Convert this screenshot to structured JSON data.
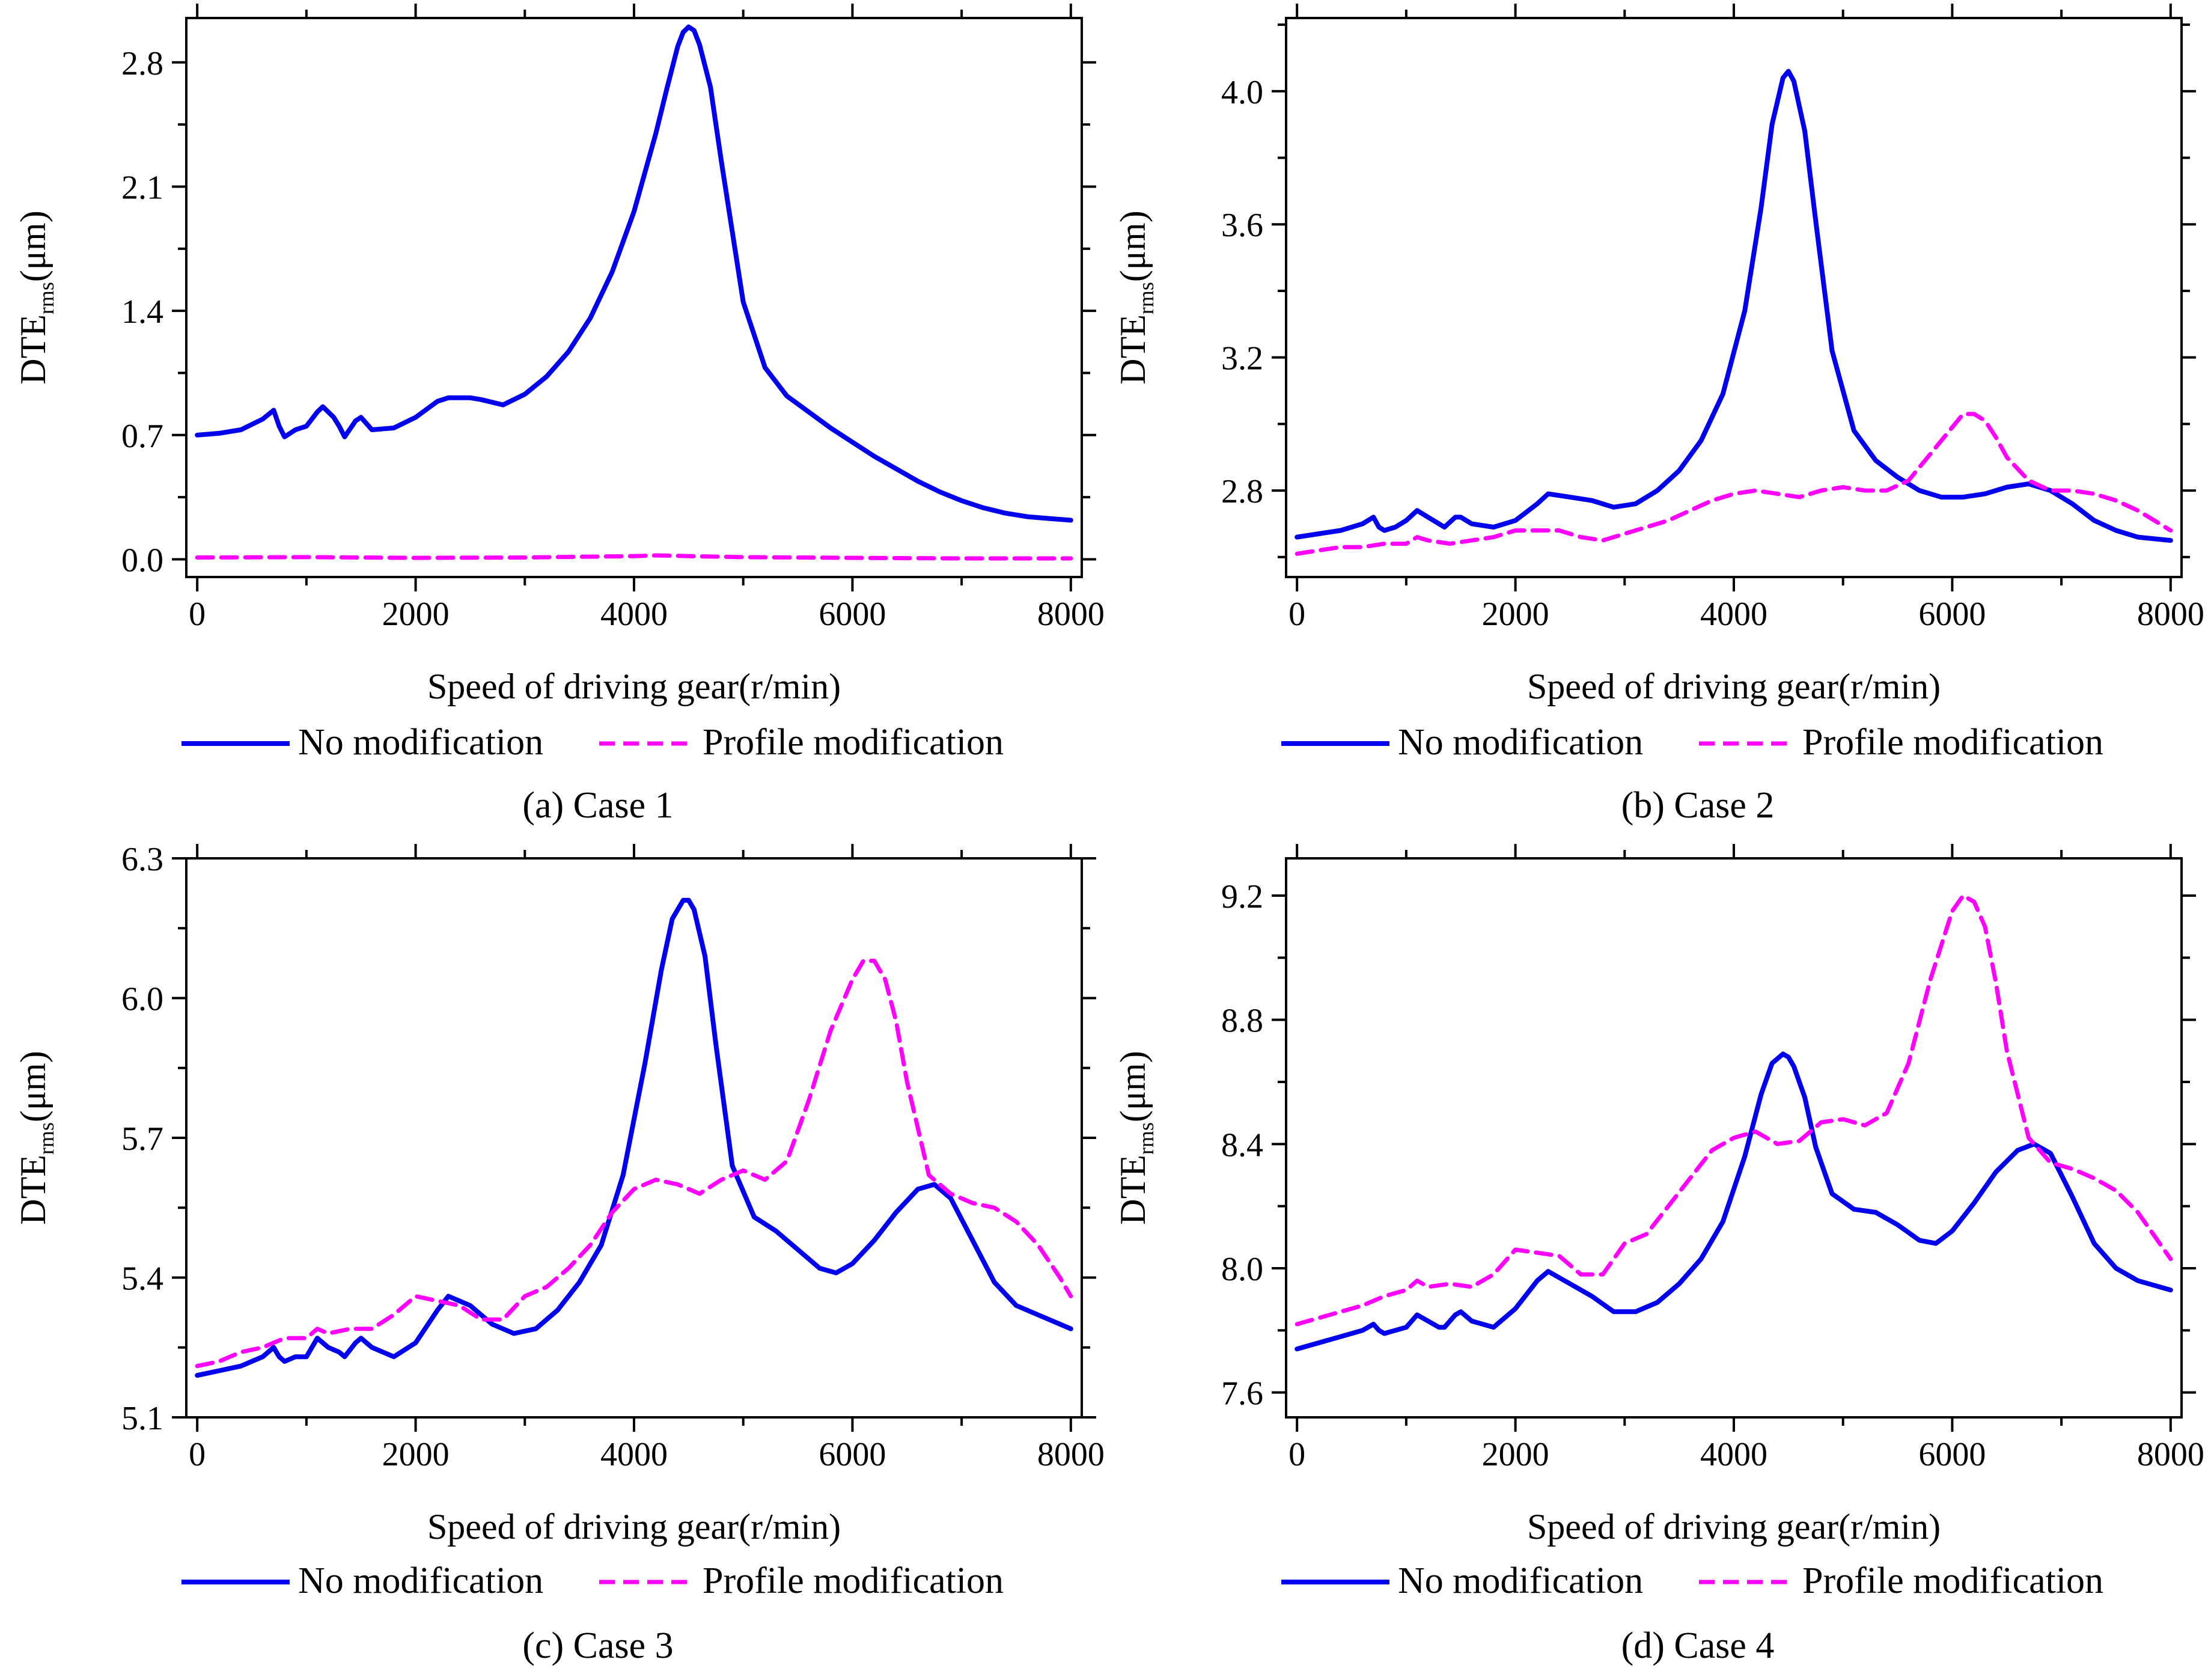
{
  "figure": {
    "panels_note": "four panels arranged 2x2"
  },
  "legend": {
    "no_mod": "No modification",
    "profile_mod": "Profile modification"
  },
  "colors": {
    "no_mod": "#0000ee",
    "profile_mod": "#ff00ff"
  },
  "chart_data": [
    {
      "type": "line",
      "panel": "a",
      "caption": "(a) Case 1",
      "xlabel": "Speed of driving gear(r/min)",
      "ylabel_main": "DTE",
      "ylabel_sub": "rms",
      "ylabel_unit": "(μm)",
      "xlim": [
        -100,
        8100
      ],
      "ylim": [
        -0.1,
        3.05
      ],
      "xticks": [
        0,
        2000,
        4000,
        6000,
        8000
      ],
      "xtick_labels": [
        "0",
        "2000",
        "4000",
        "6000",
        "8000"
      ],
      "yticks": [
        0.0,
        0.7,
        1.4,
        2.1,
        2.8
      ],
      "ytick_labels": [
        "0.0",
        "0.7",
        "1.4",
        "2.1",
        "2.8"
      ],
      "legend_position": "below",
      "series": [
        {
          "name": "No modification",
          "style": "solid",
          "x": [
            0,
            200,
            400,
            600,
            700,
            750,
            800,
            900,
            1000,
            1100,
            1150,
            1250,
            1300,
            1350,
            1450,
            1500,
            1600,
            1800,
            2000,
            2200,
            2300,
            2500,
            2600,
            2800,
            3000,
            3200,
            3400,
            3600,
            3800,
            4000,
            4200,
            4300,
            4400,
            4450,
            4500,
            4550,
            4600,
            4700,
            4800,
            5000,
            5200,
            5400,
            5600,
            5800,
            6000,
            6200,
            6400,
            6600,
            6800,
            7000,
            7200,
            7400,
            7600,
            7800,
            8000
          ],
          "y": [
            0.7,
            0.71,
            0.73,
            0.79,
            0.84,
            0.75,
            0.69,
            0.73,
            0.75,
            0.83,
            0.86,
            0.8,
            0.75,
            0.69,
            0.78,
            0.8,
            0.73,
            0.74,
            0.8,
            0.89,
            0.91,
            0.91,
            0.9,
            0.87,
            0.93,
            1.03,
            1.17,
            1.36,
            1.62,
            1.96,
            2.4,
            2.65,
            2.89,
            2.97,
            3.0,
            2.98,
            2.9,
            2.66,
            2.24,
            1.45,
            1.08,
            0.92,
            0.83,
            0.74,
            0.66,
            0.58,
            0.51,
            0.44,
            0.38,
            0.33,
            0.29,
            0.26,
            0.24,
            0.23,
            0.22
          ]
        },
        {
          "name": "Profile modification",
          "style": "dashed",
          "x": [
            0,
            1000,
            2000,
            3000,
            4000,
            4200,
            4500,
            5000,
            6000,
            7000,
            8000
          ],
          "y": [
            0.01,
            0.012,
            0.008,
            0.01,
            0.018,
            0.022,
            0.018,
            0.012,
            0.008,
            0.005,
            0.005
          ]
        }
      ]
    },
    {
      "type": "line",
      "panel": "b",
      "caption": "(b) Case 2",
      "xlabel": "Speed of driving gear(r/min)",
      "ylabel_main": "DTE",
      "ylabel_sub": "rms",
      "ylabel_unit": "(μm)",
      "xlim": [
        -100,
        8100
      ],
      "ylim": [
        2.54,
        4.22
      ],
      "xticks": [
        0,
        2000,
        4000,
        6000,
        8000
      ],
      "xtick_labels": [
        "0",
        "2000",
        "4000",
        "6000",
        "8000"
      ],
      "yticks": [
        2.8,
        3.2,
        3.6,
        4.0
      ],
      "ytick_labels": [
        "2.8",
        "3.2",
        "3.6",
        "4.0"
      ],
      "legend_position": "below",
      "series": [
        {
          "name": "No modification",
          "style": "solid",
          "x": [
            0,
            200,
            400,
            600,
            700,
            750,
            800,
            900,
            1000,
            1100,
            1200,
            1300,
            1350,
            1450,
            1500,
            1600,
            1800,
            2000,
            2200,
            2300,
            2500,
            2700,
            2900,
            3100,
            3300,
            3500,
            3700,
            3900,
            4100,
            4250,
            4350,
            4450,
            4500,
            4550,
            4650,
            4750,
            4900,
            5100,
            5300,
            5500,
            5700,
            5900,
            6100,
            6300,
            6500,
            6700,
            6900,
            7100,
            7300,
            7500,
            7700,
            8000
          ],
          "y": [
            2.66,
            2.67,
            2.68,
            2.7,
            2.72,
            2.69,
            2.68,
            2.69,
            2.71,
            2.74,
            2.72,
            2.7,
            2.69,
            2.72,
            2.72,
            2.7,
            2.69,
            2.71,
            2.76,
            2.79,
            2.78,
            2.77,
            2.75,
            2.76,
            2.8,
            2.86,
            2.95,
            3.09,
            3.34,
            3.65,
            3.9,
            4.04,
            4.06,
            4.03,
            3.88,
            3.61,
            3.22,
            2.98,
            2.89,
            2.84,
            2.8,
            2.78,
            2.78,
            2.79,
            2.81,
            2.82,
            2.8,
            2.76,
            2.71,
            2.68,
            2.66,
            2.65
          ]
        },
        {
          "name": "Profile modification",
          "style": "dashed",
          "x": [
            0,
            200,
            400,
            600,
            800,
            1000,
            1100,
            1200,
            1400,
            1600,
            1800,
            2000,
            2200,
            2400,
            2600,
            2800,
            3000,
            3200,
            3400,
            3600,
            3800,
            4000,
            4200,
            4400,
            4600,
            4800,
            5000,
            5200,
            5400,
            5600,
            5800,
            6000,
            6100,
            6200,
            6300,
            6400,
            6500,
            6700,
            6900,
            7100,
            7300,
            7500,
            7700,
            7900,
            8000
          ],
          "y": [
            2.61,
            2.62,
            2.63,
            2.63,
            2.64,
            2.64,
            2.66,
            2.65,
            2.64,
            2.65,
            2.66,
            2.68,
            2.68,
            2.68,
            2.66,
            2.65,
            2.67,
            2.69,
            2.71,
            2.74,
            2.77,
            2.79,
            2.8,
            2.79,
            2.78,
            2.8,
            2.81,
            2.8,
            2.8,
            2.83,
            2.91,
            2.99,
            3.03,
            3.03,
            3.01,
            2.96,
            2.9,
            2.83,
            2.8,
            2.8,
            2.79,
            2.77,
            2.74,
            2.7,
            2.68
          ]
        }
      ]
    },
    {
      "type": "line",
      "panel": "c",
      "caption": "(c) Case 3",
      "xlabel": "Speed of driving gear(r/min)",
      "ylabel_main": "DTE",
      "ylabel_sub": "rms",
      "ylabel_unit": "(μm)",
      "xlim": [
        -100,
        8100
      ],
      "ylim": [
        5.1,
        6.3
      ],
      "xticks": [
        0,
        2000,
        4000,
        6000,
        8000
      ],
      "xtick_labels": [
        "0",
        "2000",
        "4000",
        "6000",
        "8000"
      ],
      "yticks": [
        5.1,
        5.4,
        5.7,
        6.0,
        6.3
      ],
      "ytick_labels": [
        "5.1",
        "5.4",
        "5.7",
        "6.0",
        "6.3"
      ],
      "legend_position": "below",
      "series": [
        {
          "name": "No modification",
          "style": "solid",
          "x": [
            0,
            200,
            400,
            600,
            700,
            750,
            800,
            900,
            1000,
            1100,
            1200,
            1300,
            1350,
            1450,
            1500,
            1600,
            1800,
            2000,
            2200,
            2300,
            2500,
            2700,
            2900,
            3100,
            3300,
            3500,
            3700,
            3900,
            4100,
            4250,
            4350,
            4450,
            4500,
            4550,
            4650,
            4750,
            4900,
            5100,
            5300,
            5500,
            5700,
            5850,
            6000,
            6200,
            6400,
            6600,
            6750,
            6900,
            7100,
            7300,
            7500,
            7700,
            8000
          ],
          "y": [
            5.19,
            5.2,
            5.21,
            5.23,
            5.25,
            5.23,
            5.22,
            5.23,
            5.23,
            5.27,
            5.25,
            5.24,
            5.23,
            5.26,
            5.27,
            5.25,
            5.23,
            5.26,
            5.33,
            5.36,
            5.34,
            5.3,
            5.28,
            5.29,
            5.33,
            5.39,
            5.47,
            5.62,
            5.86,
            6.06,
            6.17,
            6.21,
            6.21,
            6.19,
            6.09,
            5.9,
            5.64,
            5.53,
            5.5,
            5.46,
            5.42,
            5.41,
            5.43,
            5.48,
            5.54,
            5.59,
            5.6,
            5.57,
            5.48,
            5.39,
            5.34,
            5.32,
            5.29
          ]
        },
        {
          "name": "Profile modification",
          "style": "dashed",
          "x": [
            0,
            200,
            400,
            600,
            800,
            1000,
            1100,
            1200,
            1400,
            1600,
            1800,
            2000,
            2200,
            2400,
            2600,
            2800,
            3000,
            3200,
            3400,
            3600,
            3800,
            4000,
            4200,
            4400,
            4600,
            4800,
            5000,
            5200,
            5400,
            5600,
            5800,
            6000,
            6100,
            6200,
            6300,
            6400,
            6500,
            6700,
            6900,
            7100,
            7300,
            7500,
            7700,
            7900,
            8000
          ],
          "y": [
            5.21,
            5.22,
            5.24,
            5.25,
            5.27,
            5.27,
            5.29,
            5.28,
            5.29,
            5.29,
            5.32,
            5.36,
            5.35,
            5.34,
            5.31,
            5.31,
            5.36,
            5.38,
            5.42,
            5.47,
            5.54,
            5.59,
            5.61,
            5.6,
            5.58,
            5.61,
            5.63,
            5.61,
            5.65,
            5.78,
            5.93,
            6.04,
            6.08,
            6.08,
            6.04,
            5.95,
            5.82,
            5.62,
            5.58,
            5.56,
            5.55,
            5.52,
            5.47,
            5.4,
            5.36
          ]
        }
      ]
    },
    {
      "type": "line",
      "panel": "d",
      "caption": "(d) Case 4",
      "xlabel": "Speed of driving gear(r/min)",
      "ylabel_main": "DTE",
      "ylabel_sub": "rms",
      "ylabel_unit": "(μm)",
      "xlim": [
        -100,
        8100
      ],
      "ylim": [
        7.52,
        9.32
      ],
      "xticks": [
        0,
        2000,
        4000,
        6000,
        8000
      ],
      "xtick_labels": [
        "0",
        "2000",
        "4000",
        "6000",
        "8000"
      ],
      "yticks": [
        7.6,
        8.0,
        8.4,
        8.8,
        9.2
      ],
      "ytick_labels": [
        "7.6",
        "8.0",
        "8.4",
        "8.8",
        "9.2"
      ],
      "legend_position": "below",
      "series": [
        {
          "name": "No modification",
          "style": "solid",
          "x": [
            0,
            200,
            400,
            600,
            700,
            750,
            800,
            900,
            1000,
            1100,
            1200,
            1300,
            1350,
            1450,
            1500,
            1600,
            1800,
            2000,
            2200,
            2300,
            2500,
            2700,
            2900,
            3100,
            3300,
            3500,
            3700,
            3900,
            4100,
            4250,
            4350,
            4450,
            4500,
            4550,
            4650,
            4750,
            4900,
            5100,
            5300,
            5500,
            5700,
            5850,
            6000,
            6200,
            6400,
            6600,
            6750,
            6900,
            7100,
            7300,
            7500,
            7700,
            8000
          ],
          "y": [
            7.74,
            7.76,
            7.78,
            7.8,
            7.82,
            7.8,
            7.79,
            7.8,
            7.81,
            7.85,
            7.83,
            7.81,
            7.81,
            7.85,
            7.86,
            7.83,
            7.81,
            7.87,
            7.96,
            7.99,
            7.95,
            7.91,
            7.86,
            7.86,
            7.89,
            7.95,
            8.03,
            8.15,
            8.36,
            8.56,
            8.66,
            8.69,
            8.68,
            8.65,
            8.55,
            8.39,
            8.24,
            8.19,
            8.18,
            8.14,
            8.09,
            8.08,
            8.12,
            8.21,
            8.31,
            8.38,
            8.4,
            8.37,
            8.23,
            8.08,
            8.0,
            7.96,
            7.93
          ]
        },
        {
          "name": "Profile modification",
          "style": "dashed",
          "x": [
            0,
            200,
            400,
            600,
            800,
            1000,
            1100,
            1200,
            1400,
            1600,
            1800,
            2000,
            2200,
            2400,
            2600,
            2800,
            3000,
            3200,
            3400,
            3600,
            3800,
            4000,
            4200,
            4400,
            4600,
            4800,
            5000,
            5200,
            5400,
            5600,
            5800,
            6000,
            6100,
            6200,
            6300,
            6400,
            6500,
            6700,
            6900,
            7100,
            7300,
            7500,
            7700,
            7900,
            8000
          ],
          "y": [
            7.82,
            7.84,
            7.86,
            7.88,
            7.91,
            7.93,
            7.96,
            7.94,
            7.95,
            7.94,
            7.98,
            8.06,
            8.05,
            8.04,
            7.98,
            7.98,
            8.08,
            8.11,
            8.2,
            8.29,
            8.38,
            8.42,
            8.44,
            8.4,
            8.41,
            8.47,
            8.48,
            8.46,
            8.5,
            8.66,
            8.93,
            9.15,
            9.2,
            9.18,
            9.1,
            8.92,
            8.7,
            8.42,
            8.34,
            8.32,
            8.29,
            8.25,
            8.18,
            8.08,
            8.03
          ]
        }
      ]
    }
  ]
}
